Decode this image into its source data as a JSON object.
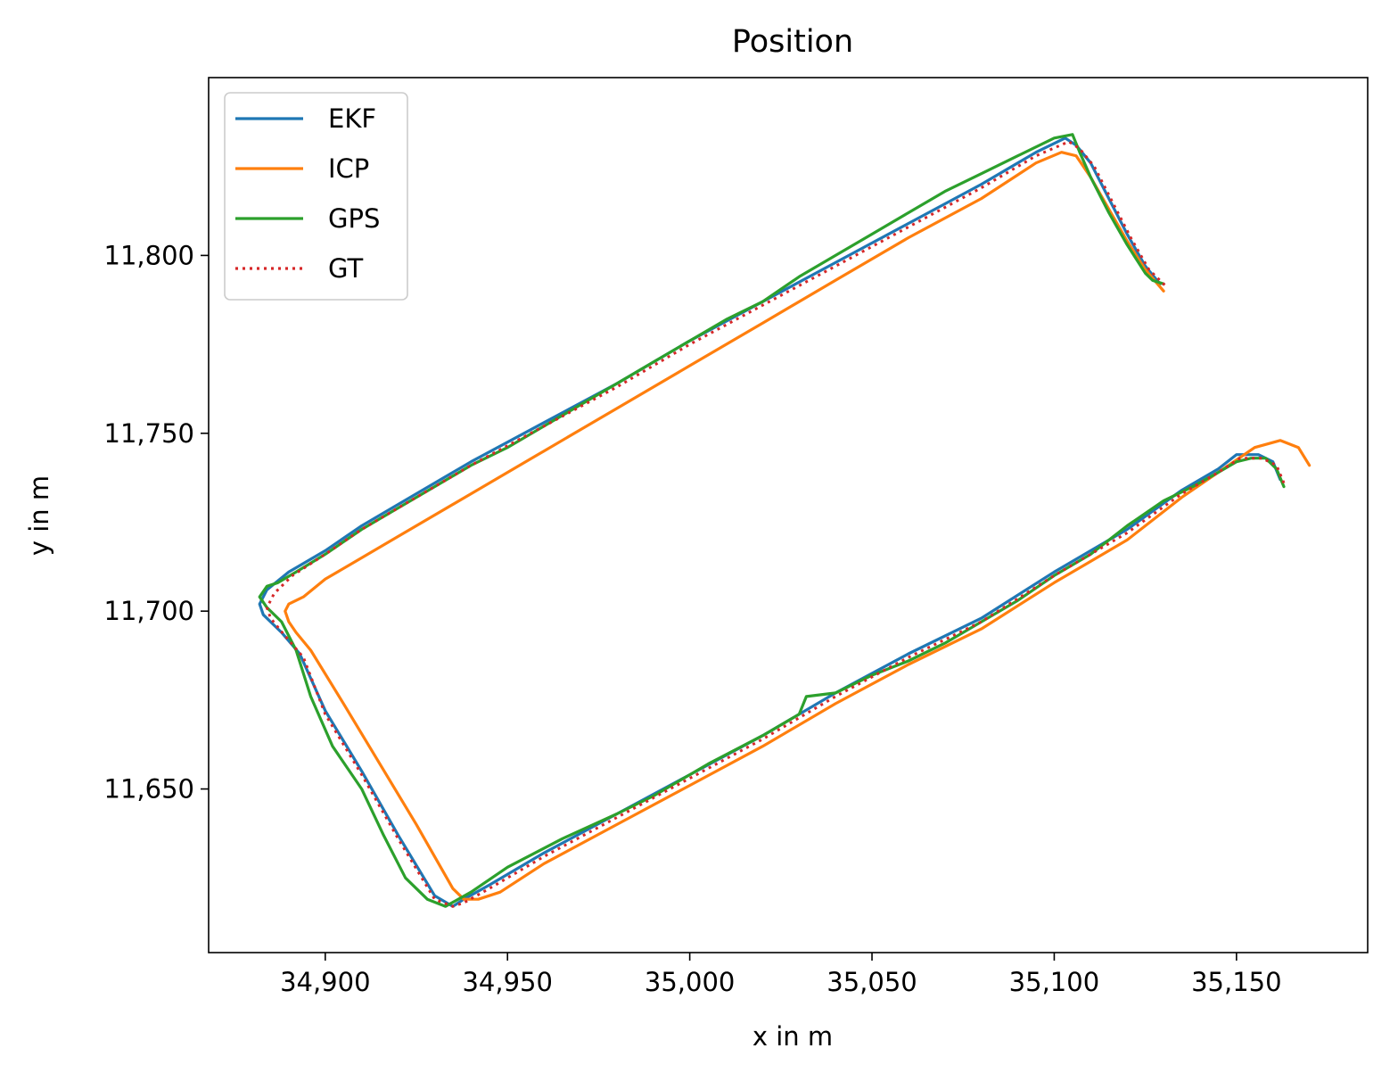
{
  "chart_data": {
    "type": "line",
    "title": "Position",
    "xlabel": "x in m",
    "ylabel": "y in m",
    "xlim": [
      34868,
      35186
    ],
    "ylim": [
      11604,
      11850
    ],
    "xticks": [
      34900,
      34950,
      35000,
      35050,
      35100,
      35150
    ],
    "xtick_labels": [
      "34,900",
      "34,950",
      "35,000",
      "35,050",
      "35,100",
      "35,150"
    ],
    "yticks": [
      11650,
      11700,
      11750,
      11800
    ],
    "ytick_labels": [
      "11,650",
      "11,700",
      "11,750",
      "11,800"
    ],
    "grid": false,
    "legend": {
      "placement": "upper-left",
      "entries": [
        "EKF",
        "ICP",
        "GPS",
        "GT"
      ]
    },
    "series": [
      {
        "name": "EKF",
        "color": "#1f77b4",
        "style": "solid",
        "x": [
          35162,
          35160,
          35156,
          35150,
          35145,
          35135,
          35120,
          35100,
          35080,
          35060,
          35040,
          35020,
          35000,
          34980,
          34960,
          34945,
          34938,
          34935,
          34930,
          34920,
          34910,
          34900,
          34893,
          34888,
          34883,
          34882,
          34884,
          34890,
          34900,
          34910,
          34920,
          34940,
          34960,
          34980,
          35000,
          35020,
          35040,
          35060,
          35080,
          35095,
          35103,
          35106,
          35110,
          35115,
          35120,
          35125,
          35129
        ],
        "y": [
          11737,
          11742,
          11744,
          11744,
          11740,
          11734,
          11723,
          11711,
          11698,
          11688,
          11677,
          11665,
          11654,
          11643,
          11632,
          11623,
          11619,
          11617,
          11620,
          11637,
          11655,
          11672,
          11688,
          11694,
          11699,
          11702,
          11706,
          11711,
          11717,
          11724,
          11730,
          11742,
          11753,
          11764,
          11776,
          11787,
          11798,
          11809,
          11820,
          11829,
          11833,
          11831,
          11826,
          11816,
          11806,
          11797,
          11792
        ]
      },
      {
        "name": "ICP",
        "color": "#ff7f0e",
        "style": "solid",
        "x": [
          35170,
          35167,
          35162,
          35155,
          35145,
          35135,
          35120,
          35100,
          35080,
          35060,
          35040,
          35020,
          35000,
          34980,
          34960,
          34948,
          34942,
          34938,
          34935,
          34925,
          34915,
          34905,
          34896,
          34892,
          34890,
          34889,
          34890,
          34894,
          34900,
          34910,
          34920,
          34940,
          34960,
          34980,
          35000,
          35020,
          35040,
          35060,
          35080,
          35095,
          35102,
          35106,
          35110,
          35115,
          35120,
          35125,
          35130
        ],
        "y": [
          11741,
          11746,
          11748,
          11746,
          11739,
          11732,
          11720,
          11708,
          11695,
          11685,
          11674,
          11662,
          11651,
          11640,
          11629,
          11621,
          11619,
          11619,
          11622,
          11640,
          11657,
          11674,
          11689,
          11694,
          11697,
          11700,
          11702,
          11704,
          11709,
          11715,
          11721,
          11733,
          11745,
          11757,
          11769,
          11781,
          11793,
          11805,
          11816,
          11826,
          11829,
          11828,
          11822,
          11813,
          11804,
          11796,
          11790
        ]
      },
      {
        "name": "GPS",
        "color": "#2ca02c",
        "style": "solid",
        "x": [
          35163,
          35161,
          35158,
          35154,
          35150,
          35145,
          35138,
          35130,
          35120,
          35110,
          35100,
          35090,
          35080,
          35070,
          35060,
          35050,
          35040,
          35032,
          35030,
          35020,
          35005,
          35000,
          34990,
          34980,
          34965,
          34950,
          34940,
          34933,
          34928,
          34922,
          34916,
          34910,
          34902,
          34896,
          34892,
          34888,
          34884,
          34882,
          34884,
          34887,
          34892,
          34900,
          34910,
          34920,
          34930,
          34940,
          34950,
          34960,
          34970,
          34980,
          34990,
          35000,
          35010,
          35020,
          35030,
          35040,
          35050,
          35060,
          35070,
          35080,
          35090,
          35100,
          35105,
          35107,
          35110,
          35115,
          35120,
          35125,
          35127,
          35130
        ],
        "y": [
          11735,
          11740,
          11743,
          11743,
          11742,
          11739,
          11735,
          11731,
          11724,
          11716,
          11710,
          11703,
          11697,
          11691,
          11686,
          11682,
          11677,
          11676,
          11671,
          11665,
          11657,
          11654,
          11648,
          11643,
          11636,
          11628,
          11621,
          11617,
          11619,
          11625,
          11637,
          11650,
          11662,
          11676,
          11689,
          11697,
          11701,
          11704,
          11707,
          11708,
          11711,
          11716,
          11723,
          11729,
          11735,
          11741,
          11746,
          11752,
          11758,
          11764,
          11770,
          11776,
          11782,
          11787,
          11794,
          11800,
          11806,
          11812,
          11818,
          11823,
          11828,
          11833,
          11834,
          11829,
          11822,
          11812,
          11803,
          11795,
          11793,
          11792
        ]
      },
      {
        "name": "GT",
        "color": "#d62728",
        "style": "dotted",
        "x": [
          35163,
          35161,
          35157,
          35151,
          35145,
          35135,
          35120,
          35100,
          35080,
          35060,
          35040,
          35020,
          35000,
          34980,
          34960,
          34945,
          34938,
          34935,
          34930,
          34920,
          34910,
          34900,
          34894,
          34889,
          34885,
          34884,
          34886,
          34891,
          34900,
          34910,
          34920,
          34940,
          34960,
          34980,
          35000,
          35020,
          35040,
          35060,
          35080,
          35095,
          35104,
          35107,
          35111,
          35116,
          35121,
          35126,
          35131
        ],
        "y": [
          11736,
          11741,
          11743,
          11743,
          11739,
          11733,
          11722,
          11710,
          11697,
          11687,
          11676,
          11664,
          11653,
          11642,
          11631,
          11622,
          11618,
          11617,
          11619,
          11636,
          11654,
          11671,
          11687,
          11693,
          11698,
          11701,
          11705,
          11710,
          11716,
          11723,
          11729,
          11741,
          11752,
          11763,
          11775,
          11786,
          11797,
          11808,
          11819,
          11828,
          11832,
          11830,
          11825,
          11815,
          11805,
          11796,
          11791
        ]
      }
    ]
  }
}
